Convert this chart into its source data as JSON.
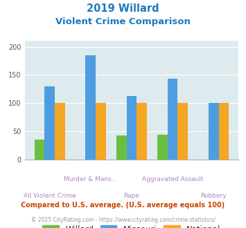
{
  "title_line1": "2019 Willard",
  "title_line2": "Violent Crime Comparison",
  "title_color": "#1a7abf",
  "categories": [
    "All Violent Crime",
    "Murder & Mans...",
    "Rape",
    "Aggravated Assault",
    "Robbery"
  ],
  "willard": [
    35,
    0,
    43,
    44,
    0
  ],
  "missouri": [
    130,
    185,
    112,
    143,
    100
  ],
  "national": [
    100,
    100,
    100,
    100,
    100
  ],
  "willard_color": "#6abf40",
  "missouri_color": "#4d9de0",
  "national_color": "#f5a623",
  "bg_color": "#ddeaee",
  "ylim": [
    0,
    210
  ],
  "yticks": [
    0,
    50,
    100,
    150,
    200
  ],
  "footnote1": "Compared to U.S. average. (U.S. average equals 100)",
  "footnote2": "© 2025 CityRating.com - https://www.cityrating.com/crime-statistics/",
  "footnote1_color": "#cc4400",
  "footnote2_color": "#999999",
  "label_color": "#aa88bb",
  "tick_color": "#555555"
}
